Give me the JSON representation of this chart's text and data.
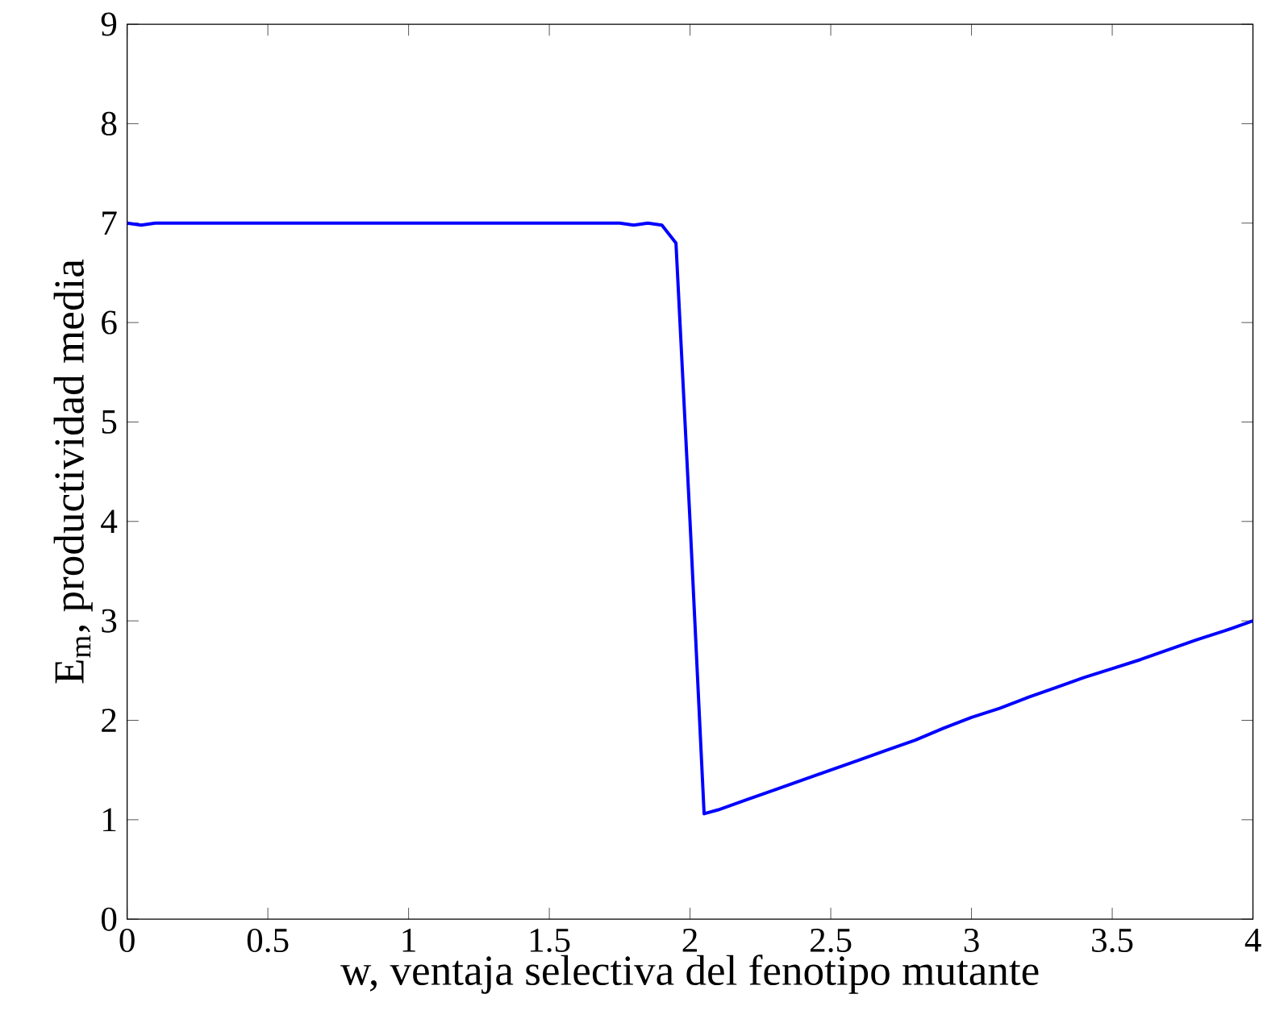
{
  "chart_data": {
    "type": "line",
    "xlabel": "w, ventaja selectiva del fenotipo mutante",
    "ylabel": "E$_{m}$, productividad media",
    "x": [
      0,
      0.05,
      0.1,
      0.5,
      1,
      1.5,
      1.75,
      1.8,
      1.85,
      1.9,
      1.95,
      2.0,
      2.05,
      2.1,
      2.2,
      2.3,
      2.4,
      2.5,
      2.6,
      2.7,
      2.8,
      2.9,
      3.0,
      3.1,
      3.2,
      3.3,
      3.4,
      3.5,
      3.6,
      3.7,
      3.8,
      3.9,
      4.0
    ],
    "series": [
      {
        "color": "#0000ff",
        "values": [
          7.0,
          6.98,
          7.0,
          7.0,
          7.0,
          7.0,
          7.0,
          6.98,
          7.0,
          6.98,
          6.8,
          4.0,
          1.06,
          1.1,
          1.2,
          1.3,
          1.4,
          1.5,
          1.6,
          1.7,
          1.8,
          1.92,
          2.03,
          2.12,
          2.23,
          2.33,
          2.43,
          2.52,
          2.61,
          2.71,
          2.81,
          2.9,
          3.0
        ]
      }
    ],
    "xlim": [
      0,
      4
    ],
    "ylim": [
      0,
      9
    ],
    "xticks": [
      0,
      0.5,
      1,
      1.5,
      2,
      2.5,
      3,
      3.5,
      4
    ],
    "yticks": [
      0,
      1,
      2,
      3,
      4,
      5,
      6,
      7,
      8,
      9
    ],
    "grid": false,
    "line_style": "solid"
  }
}
